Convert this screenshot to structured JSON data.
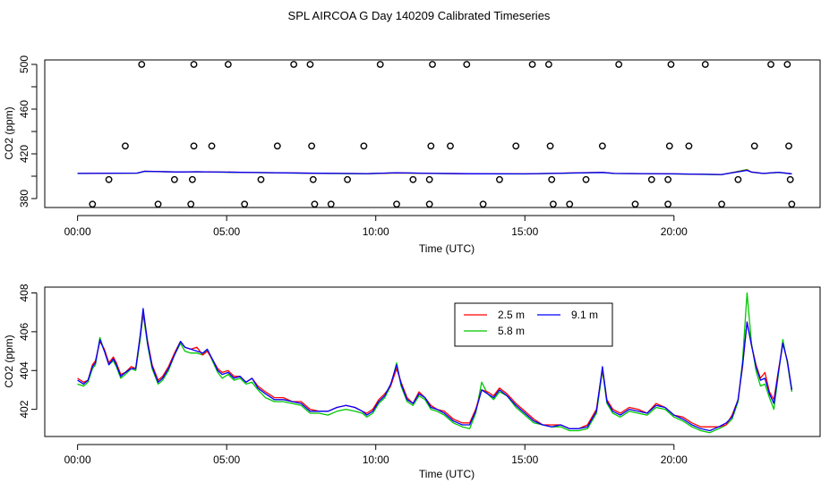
{
  "figure_title": "SPL AIRCOA G  Day 140209  Calibrated Timeseries",
  "chart_data": [
    {
      "type": "scatter",
      "title": "SPL AIRCOA G  Day 140209  Calibrated Timeseries",
      "xlabel": "Time (UTC)",
      "ylabel": "CO2 (ppm)",
      "xlim": [
        -1.1,
        24.9
      ],
      "ylim": [
        372,
        504
      ],
      "xticks": [
        0,
        5,
        10,
        15,
        20
      ],
      "xtick_labels": [
        "00:00",
        "05:00",
        "10:00",
        "15:00",
        "20:00"
      ],
      "yticks": [
        380,
        420,
        460,
        500
      ],
      "ytick_minor": [
        400,
        440,
        480
      ],
      "ytick_labels": [
        "380",
        "420",
        "460",
        "500"
      ],
      "calibration_points": [
        {
          "x": 0.5,
          "y": 375
        },
        {
          "x": 1.05,
          "y": 397
        },
        {
          "x": 1.6,
          "y": 427
        },
        {
          "x": 2.15,
          "y": 500
        },
        {
          "x": 2.7,
          "y": 375
        },
        {
          "x": 3.25,
          "y": 397
        },
        {
          "x": 3.8,
          "y": 375
        },
        {
          "x": 3.85,
          "y": 397
        },
        {
          "x": 3.9,
          "y": 427
        },
        {
          "x": 3.9,
          "y": 500
        },
        {
          "x": 4.5,
          "y": 427
        },
        {
          "x": 5.05,
          "y": 500
        },
        {
          "x": 5.6,
          "y": 375
        },
        {
          "x": 6.15,
          "y": 397
        },
        {
          "x": 6.7,
          "y": 427
        },
        {
          "x": 7.25,
          "y": 500
        },
        {
          "x": 7.8,
          "y": 500
        },
        {
          "x": 7.85,
          "y": 427
        },
        {
          "x": 7.9,
          "y": 397
        },
        {
          "x": 7.95,
          "y": 375
        },
        {
          "x": 8.5,
          "y": 375
        },
        {
          "x": 9.05,
          "y": 397
        },
        {
          "x": 9.6,
          "y": 427
        },
        {
          "x": 10.15,
          "y": 500
        },
        {
          "x": 10.7,
          "y": 375
        },
        {
          "x": 11.25,
          "y": 397
        },
        {
          "x": 11.8,
          "y": 397
        },
        {
          "x": 11.85,
          "y": 427
        },
        {
          "x": 11.9,
          "y": 500
        },
        {
          "x": 11.8,
          "y": 375
        },
        {
          "x": 12.5,
          "y": 427
        },
        {
          "x": 13.05,
          "y": 500
        },
        {
          "x": 13.6,
          "y": 375
        },
        {
          "x": 14.15,
          "y": 397
        },
        {
          "x": 14.7,
          "y": 427
        },
        {
          "x": 15.25,
          "y": 500
        },
        {
          "x": 15.8,
          "y": 500
        },
        {
          "x": 15.85,
          "y": 427
        },
        {
          "x": 15.9,
          "y": 397
        },
        {
          "x": 15.95,
          "y": 375
        },
        {
          "x": 16.5,
          "y": 375
        },
        {
          "x": 17.05,
          "y": 397
        },
        {
          "x": 17.6,
          "y": 427
        },
        {
          "x": 18.15,
          "y": 500
        },
        {
          "x": 18.7,
          "y": 375
        },
        {
          "x": 19.25,
          "y": 397
        },
        {
          "x": 19.8,
          "y": 375
        },
        {
          "x": 19.8,
          "y": 397
        },
        {
          "x": 19.85,
          "y": 427
        },
        {
          "x": 19.9,
          "y": 500
        },
        {
          "x": 20.5,
          "y": 427
        },
        {
          "x": 21.05,
          "y": 500
        },
        {
          "x": 21.6,
          "y": 375
        },
        {
          "x": 22.15,
          "y": 397
        },
        {
          "x": 22.7,
          "y": 427
        },
        {
          "x": 23.25,
          "y": 500
        },
        {
          "x": 23.8,
          "y": 500
        },
        {
          "x": 23.85,
          "y": 427
        },
        {
          "x": 23.9,
          "y": 397
        },
        {
          "x": 23.95,
          "y": 375
        }
      ],
      "series": [
        {
          "name": "2.5 m",
          "color": "#ff0000",
          "x": [
            0,
            2,
            2.25,
            3.4,
            4,
            6,
            8,
            9.7,
            10.7,
            12,
            13.5,
            15,
            17.6,
            18,
            20,
            21.6,
            22.45,
            22.6,
            23,
            23.5,
            23.95
          ],
          "values": [
            402.5,
            402.8,
            404.5,
            403.8,
            404,
            403.3,
            402.6,
            402.3,
            403,
            402.5,
            402.2,
            402.1,
            403.5,
            402.5,
            402.1,
            401.5,
            405.5,
            403.8,
            402.5,
            403.5,
            402.2
          ]
        },
        {
          "name": "5.8 m",
          "color": "#00cc00",
          "x": [
            0,
            2,
            2.25,
            3.4,
            4,
            6,
            8,
            9.7,
            10.7,
            12,
            13.5,
            15,
            17.6,
            18,
            20,
            21.6,
            22.45,
            22.6,
            23,
            23.5,
            23.95
          ],
          "values": [
            402.4,
            402.7,
            404.3,
            403.7,
            403.9,
            403.2,
            402.5,
            402.2,
            403,
            402.4,
            402.2,
            402.0,
            403.3,
            402.4,
            402.0,
            401.4,
            406,
            403.6,
            402.4,
            403.4,
            402.1
          ]
        },
        {
          "name": "9.1 m",
          "color": "#0000ff",
          "x": [
            0,
            2,
            2.25,
            3.4,
            4,
            6,
            8,
            9.7,
            10.7,
            12,
            13.5,
            15,
            17.6,
            18,
            20,
            21.6,
            22.45,
            22.6,
            23,
            23.5,
            23.95
          ],
          "values": [
            402.5,
            402.8,
            404.4,
            403.8,
            404,
            403.3,
            402.6,
            402.3,
            403.1,
            402.5,
            402.2,
            402.1,
            403.4,
            402.5,
            402.1,
            401.5,
            405.2,
            403.7,
            402.5,
            403.5,
            402.2
          ]
        }
      ]
    },
    {
      "type": "line",
      "xlabel": "Time (UTC)",
      "ylabel": "CO2 (ppm)",
      "xlim": [
        -1.1,
        24.9
      ],
      "ylim": [
        400.6,
        408.3
      ],
      "xticks": [
        0,
        5,
        10,
        15,
        20
      ],
      "xtick_labels": [
        "00:00",
        "05:00",
        "10:00",
        "15:00",
        "20:00"
      ],
      "yticks": [
        402,
        404,
        406,
        408
      ],
      "ytick_labels": [
        "402",
        "404",
        "406",
        "408"
      ],
      "legend": {
        "position": "top-center",
        "entries": [
          "2.5 m",
          "9.1 m",
          "5.8 m"
        ]
      },
      "x": [
        0,
        0.2,
        0.35,
        0.5,
        0.6,
        0.75,
        0.9,
        1.05,
        1.2,
        1.3,
        1.45,
        1.6,
        1.8,
        1.95,
        2.1,
        2.2,
        2.35,
        2.5,
        2.7,
        2.85,
        3.05,
        3.25,
        3.45,
        3.6,
        3.8,
        4.0,
        4.2,
        4.35,
        4.55,
        4.7,
        4.85,
        5.05,
        5.25,
        5.45,
        5.65,
        5.85,
        6.05,
        6.3,
        6.6,
        6.9,
        7.2,
        7.5,
        7.8,
        8.1,
        8.4,
        8.7,
        9.0,
        9.3,
        9.55,
        9.7,
        9.9,
        10.1,
        10.3,
        10.5,
        10.7,
        10.85,
        11.05,
        11.25,
        11.45,
        11.65,
        11.85,
        12.05,
        12.3,
        12.6,
        12.9,
        13.15,
        13.35,
        13.55,
        13.75,
        13.95,
        14.15,
        14.4,
        14.7,
        15.0,
        15.3,
        15.6,
        15.9,
        16.2,
        16.5,
        16.8,
        17.1,
        17.4,
        17.6,
        17.75,
        17.95,
        18.2,
        18.5,
        18.8,
        19.1,
        19.4,
        19.7,
        20.0,
        20.3,
        20.6,
        20.9,
        21.2,
        21.5,
        21.75,
        21.95,
        22.15,
        22.3,
        22.45,
        22.6,
        22.75,
        22.9,
        23.05,
        23.2,
        23.35,
        23.5,
        23.65,
        23.8,
        23.95
      ],
      "series": [
        {
          "name": "2.5 m",
          "color": "#ff0000",
          "values": [
            403.6,
            403.4,
            403.5,
            404.3,
            404.5,
            405.5,
            405.1,
            404.4,
            404.7,
            404.4,
            403.8,
            403.9,
            404.2,
            404.1,
            405.8,
            407.0,
            405.5,
            404.3,
            403.5,
            403.7,
            404.2,
            404.9,
            405.5,
            405.2,
            405.1,
            405.2,
            404.8,
            405.0,
            404.5,
            404.1,
            403.9,
            404.0,
            403.7,
            403.7,
            403.4,
            403.6,
            403.2,
            402.9,
            402.6,
            402.6,
            402.4,
            402.4,
            402.0,
            401.9,
            401.9,
            402.1,
            402.2,
            402.1,
            401.9,
            401.8,
            402.0,
            402.5,
            402.8,
            403.2,
            404.1,
            403.4,
            402.6,
            402.3,
            402.9,
            402.6,
            402.2,
            402.0,
            401.9,
            401.5,
            401.3,
            401.3,
            402.0,
            403.0,
            402.9,
            402.7,
            403.1,
            402.8,
            402.3,
            401.9,
            401.5,
            401.2,
            401.2,
            401.2,
            401.0,
            401.0,
            401.2,
            402.0,
            404.1,
            402.5,
            402.0,
            401.8,
            402.1,
            402.0,
            401.8,
            402.3,
            402.1,
            401.7,
            401.6,
            401.3,
            401.1,
            401.1,
            401.1,
            401.2,
            401.7,
            402.5,
            404.2,
            406.5,
            405.3,
            404.3,
            403.6,
            403.9,
            402.9,
            402.5,
            404.0,
            405.4,
            404.5,
            403.0
          ]
        },
        {
          "name": "5.8 m",
          "color": "#00c800",
          "values": [
            403.3,
            403.2,
            403.4,
            404.1,
            404.3,
            405.7,
            405.0,
            404.3,
            404.5,
            404.2,
            403.6,
            403.8,
            404.1,
            404.0,
            405.6,
            406.9,
            405.3,
            404.1,
            403.3,
            403.5,
            404.0,
            404.8,
            405.4,
            405.0,
            404.9,
            404.9,
            404.8,
            405.1,
            404.4,
            403.9,
            403.6,
            403.8,
            403.5,
            403.6,
            403.3,
            403.4,
            403.0,
            402.6,
            402.4,
            402.4,
            402.3,
            402.2,
            401.8,
            401.8,
            401.7,
            401.9,
            402.0,
            401.9,
            401.8,
            401.6,
            401.8,
            402.3,
            402.6,
            403.2,
            404.4,
            403.2,
            402.4,
            402.2,
            402.7,
            402.5,
            402.0,
            401.9,
            401.7,
            401.3,
            401.1,
            401.0,
            401.8,
            403.4,
            402.8,
            402.5,
            402.9,
            402.7,
            402.1,
            401.7,
            401.3,
            401.2,
            401.1,
            401.1,
            400.9,
            400.9,
            401.0,
            401.8,
            404.0,
            402.3,
            401.8,
            401.6,
            401.9,
            401.8,
            401.7,
            402.1,
            402.0,
            401.6,
            401.4,
            401.1,
            400.9,
            400.8,
            401.0,
            401.2,
            401.5,
            402.4,
            404.5,
            408.0,
            405.4,
            404.0,
            403.2,
            403.3,
            402.6,
            402.0,
            403.8,
            405.6,
            404.4,
            402.9
          ]
        },
        {
          "name": "9.1 m",
          "color": "#0000ff",
          "values": [
            403.5,
            403.3,
            403.5,
            404.2,
            404.4,
            405.6,
            405.0,
            404.3,
            404.6,
            404.3,
            403.7,
            403.9,
            404.1,
            404.1,
            405.8,
            407.2,
            405.4,
            404.2,
            403.4,
            403.6,
            404.1,
            404.8,
            405.5,
            405.2,
            405.1,
            405.0,
            404.9,
            405.1,
            404.5,
            404.0,
            403.8,
            403.9,
            403.6,
            403.7,
            403.4,
            403.6,
            403.1,
            402.8,
            402.5,
            402.5,
            402.4,
            402.3,
            401.9,
            401.9,
            401.9,
            402.1,
            402.2,
            402.1,
            401.9,
            401.7,
            401.9,
            402.4,
            402.7,
            403.3,
            404.3,
            403.3,
            402.5,
            402.3,
            402.8,
            402.6,
            402.1,
            402.0,
            401.8,
            401.4,
            401.2,
            401.2,
            401.9,
            403.0,
            402.8,
            402.6,
            403.0,
            402.7,
            402.2,
            401.8,
            401.4,
            401.2,
            401.1,
            401.2,
            401.0,
            401.0,
            401.1,
            401.9,
            404.2,
            402.4,
            401.9,
            401.7,
            402.0,
            401.9,
            401.8,
            402.2,
            402.1,
            401.7,
            401.5,
            401.2,
            401.0,
            400.9,
            401.1,
            401.3,
            401.6,
            402.5,
            404.3,
            406.5,
            405.3,
            404.2,
            403.5,
            403.6,
            402.8,
            402.3,
            403.9,
            405.4,
            404.5,
            403.0
          ]
        }
      ]
    }
  ]
}
